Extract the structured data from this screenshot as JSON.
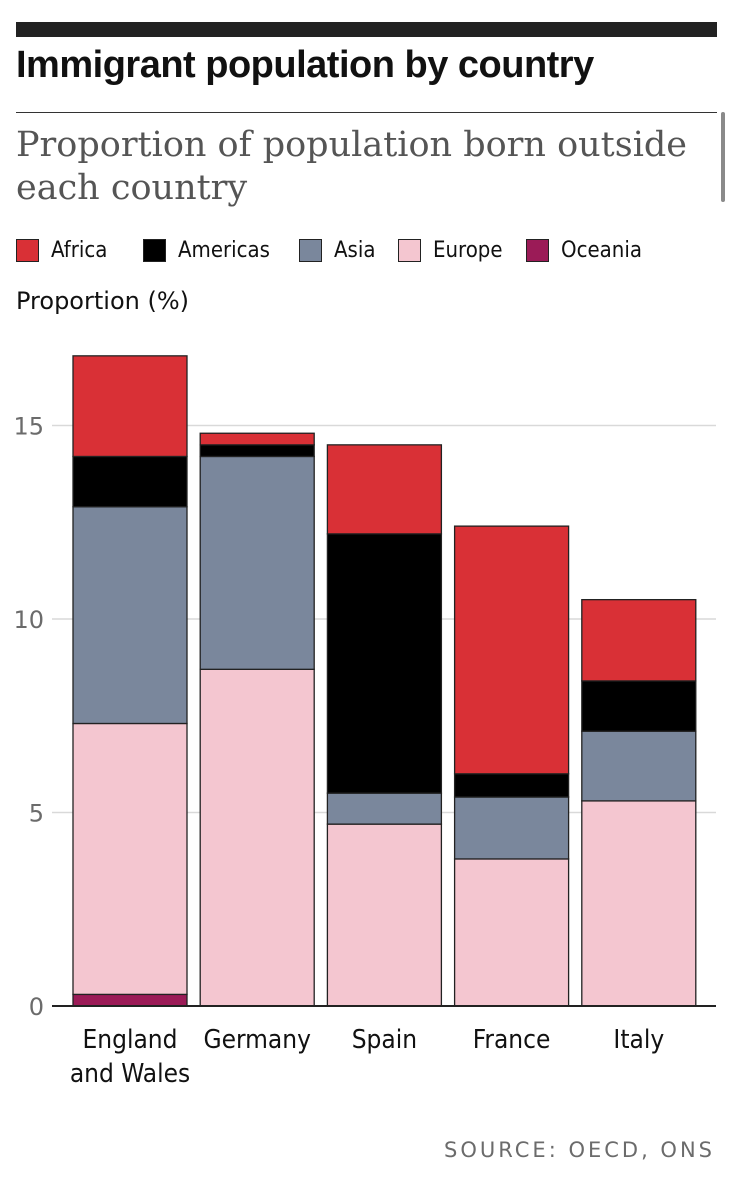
{
  "header": {
    "title": "Immigrant population by country",
    "subtitle": "Proportion of population born outside each country"
  },
  "legend": [
    {
      "label": "Africa",
      "color": "#d93036"
    },
    {
      "label": "Americas",
      "color": "#000000"
    },
    {
      "label": "Asia",
      "color": "#7a879c"
    },
    {
      "label": "Europe",
      "color": "#f4c6d0"
    },
    {
      "label": "Oceania",
      "color": "#9b1b57"
    }
  ],
  "source": "SOURCE: OECD, ONS",
  "chart_data": {
    "type": "bar",
    "stacked": true,
    "title": "Immigrant population by country",
    "subtitle": "Proportion of population born outside each country",
    "xlabel": "",
    "ylabel": "Proportion (%)",
    "ylim": [
      0,
      17
    ],
    "yticks": [
      0,
      5,
      10,
      15
    ],
    "grid": true,
    "legend_position": "top",
    "categories": [
      [
        "England",
        "and Wales"
      ],
      [
        "Germany"
      ],
      [
        "Spain"
      ],
      [
        "France"
      ],
      [
        "Italy"
      ]
    ],
    "series": [
      {
        "name": "Oceania",
        "color": "#9b1b57",
        "values": [
          0.3,
          0,
          0,
          0,
          0
        ]
      },
      {
        "name": "Europe",
        "color": "#f4c6d0",
        "values": [
          7.0,
          8.7,
          4.7,
          3.8,
          5.3
        ]
      },
      {
        "name": "Asia",
        "color": "#7a879c",
        "values": [
          5.6,
          5.5,
          0.8,
          1.6,
          1.8
        ]
      },
      {
        "name": "Americas",
        "color": "#000000",
        "values": [
          1.3,
          0.3,
          6.7,
          0.6,
          1.3
        ]
      },
      {
        "name": "Africa",
        "color": "#d93036",
        "values": [
          2.6,
          0.3,
          2.3,
          6.4,
          2.1
        ]
      }
    ]
  }
}
